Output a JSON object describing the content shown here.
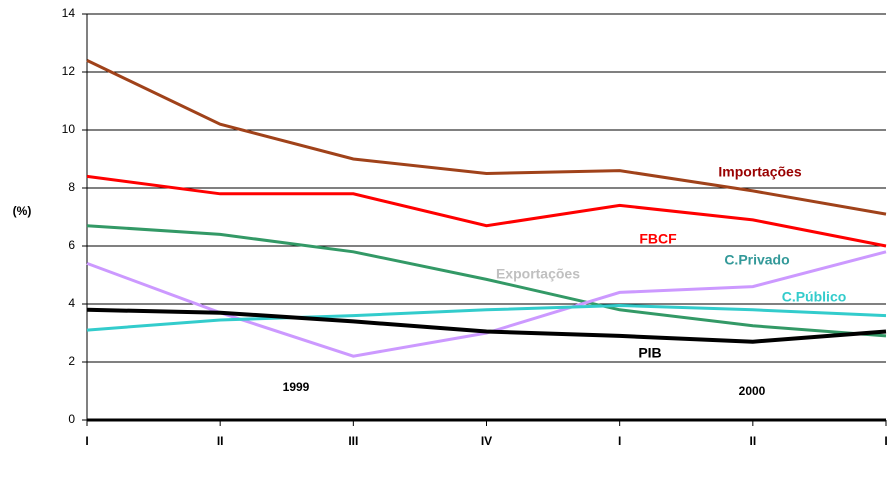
{
  "chart_data": {
    "type": "line",
    "y_label": "(%)",
    "categories": [
      "I",
      "II",
      "III",
      "IV",
      "I",
      "II",
      "I"
    ],
    "year_labels": [
      "1999",
      "2000"
    ],
    "ylim": [
      0,
      14
    ],
    "yticks": [
      0,
      2,
      4,
      6,
      8,
      10,
      12,
      14
    ],
    "grid": true,
    "series": [
      {
        "name": "Importações",
        "color": "#A0421A",
        "label_color": "#990000",
        "values": [
          12.4,
          10.2,
          9.0,
          8.5,
          8.6,
          7.9,
          7.1
        ]
      },
      {
        "name": "FBCF",
        "color": "#FF0000",
        "label_color": "#FF0000",
        "values": [
          8.4,
          7.8,
          7.8,
          6.7,
          7.4,
          6.9,
          6.0
        ]
      },
      {
        "name": "C.Privado",
        "color": "#339966",
        "label_color": "#339999",
        "values": [
          6.7,
          6.4,
          5.8,
          4.85,
          3.8,
          3.25,
          2.9
        ]
      },
      {
        "name": "Exportações",
        "color": "#CC99FF",
        "label_color": "#C0C0C0",
        "values": [
          5.4,
          3.7,
          2.2,
          3.0,
          4.4,
          4.6,
          5.8
        ]
      },
      {
        "name": "C.Público",
        "color": "#33CCCC",
        "label_color": "#33CCCC",
        "values": [
          3.1,
          3.45,
          3.6,
          3.8,
          3.95,
          3.8,
          3.6
        ]
      },
      {
        "name": "PIB",
        "color": "#000000",
        "label_color": "#000000",
        "values": [
          3.8,
          3.7,
          3.4,
          3.05,
          2.9,
          2.7,
          3.05
        ]
      }
    ]
  }
}
